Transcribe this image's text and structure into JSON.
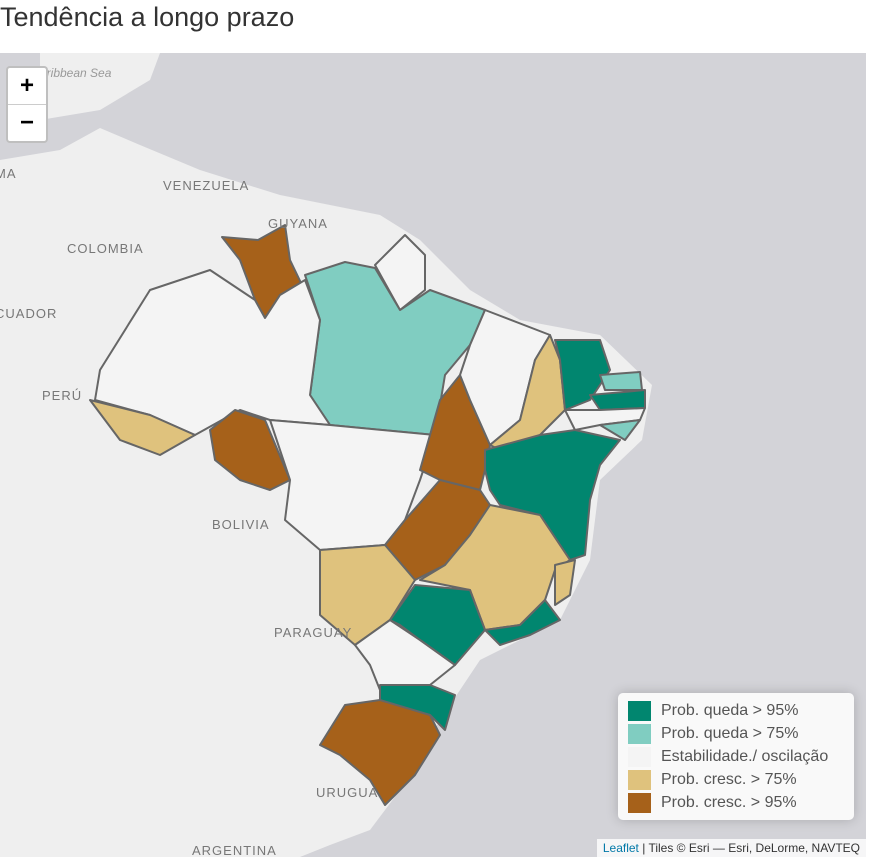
{
  "header": {
    "title": "Tendência a longo prazo"
  },
  "zoom": {
    "in": "+",
    "out": "−"
  },
  "map_labels": [
    {
      "text": "aribbean Sea",
      "style": "sea"
    },
    {
      "text": "MA",
      "style": "country"
    },
    {
      "text": "VENEZUELA",
      "style": "country"
    },
    {
      "text": "GUYANA",
      "style": "country"
    },
    {
      "text": "COLOMBIA",
      "style": "country"
    },
    {
      "text": "CUADOR",
      "style": "country"
    },
    {
      "text": "PERÚ",
      "style": "country"
    },
    {
      "text": "BOLIVIA",
      "style": "country"
    },
    {
      "text": "PARAGUAY",
      "style": "country"
    },
    {
      "text": "URUGUA",
      "style": "country"
    },
    {
      "text": "ARGENTINA",
      "style": "country"
    }
  ],
  "legend": {
    "items": [
      {
        "label": "Prob. queda > 95%",
        "color": "#01866f"
      },
      {
        "label": "Prob. queda > 75%",
        "color": "#80cdc1"
      },
      {
        "label": "Estabilidade./ oscilação",
        "color": "#f4f4f4"
      },
      {
        "label": "Prob. cresc. > 75%",
        "color": "#dfc27d"
      },
      {
        "label": "Prob. cresc. > 95%",
        "color": "#a6611a"
      }
    ]
  },
  "attribution": {
    "link": "Leaflet",
    "text": "| Tiles © Esri — Esri, DeLorme, NAVTEQ"
  }
}
